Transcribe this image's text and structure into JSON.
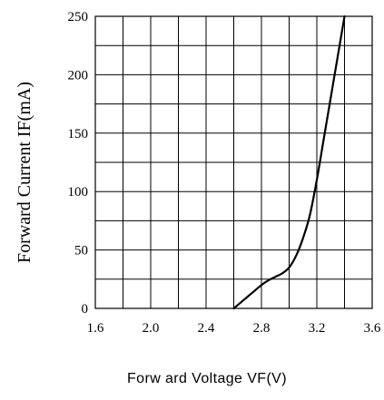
{
  "chart_data": {
    "type": "line",
    "title": "",
    "xlabel": "Forw ard Voltage VF(V)",
    "ylabel": "Forward Current IF(mA)",
    "xlim": [
      1.6,
      3.6
    ],
    "ylim": [
      0,
      250
    ],
    "x_ticks": [
      1.6,
      2.0,
      2.4,
      2.8,
      3.2,
      3.6
    ],
    "x_tick_labels": [
      "1.6",
      "2.0",
      "2.4",
      "2.8",
      "3.2",
      "3.6"
    ],
    "y_ticks": [
      0,
      50,
      100,
      150,
      200,
      250
    ],
    "y_tick_labels": [
      "0",
      "50",
      "100",
      "150",
      "200",
      "250"
    ],
    "grid": true,
    "x_grid_step": 0.2,
    "y_grid_step": 25,
    "series": [
      {
        "x": [
          2.6,
          2.65,
          2.7,
          2.75,
          2.8,
          2.85,
          2.9,
          2.95,
          3.0,
          3.05,
          3.1,
          3.15,
          3.2,
          3.25,
          3.3,
          3.35,
          3.4
        ],
        "y": [
          0,
          5,
          10,
          15,
          20,
          24,
          27,
          30,
          35,
          45,
          60,
          80,
          110,
          145,
          180,
          215,
          250
        ]
      }
    ]
  }
}
